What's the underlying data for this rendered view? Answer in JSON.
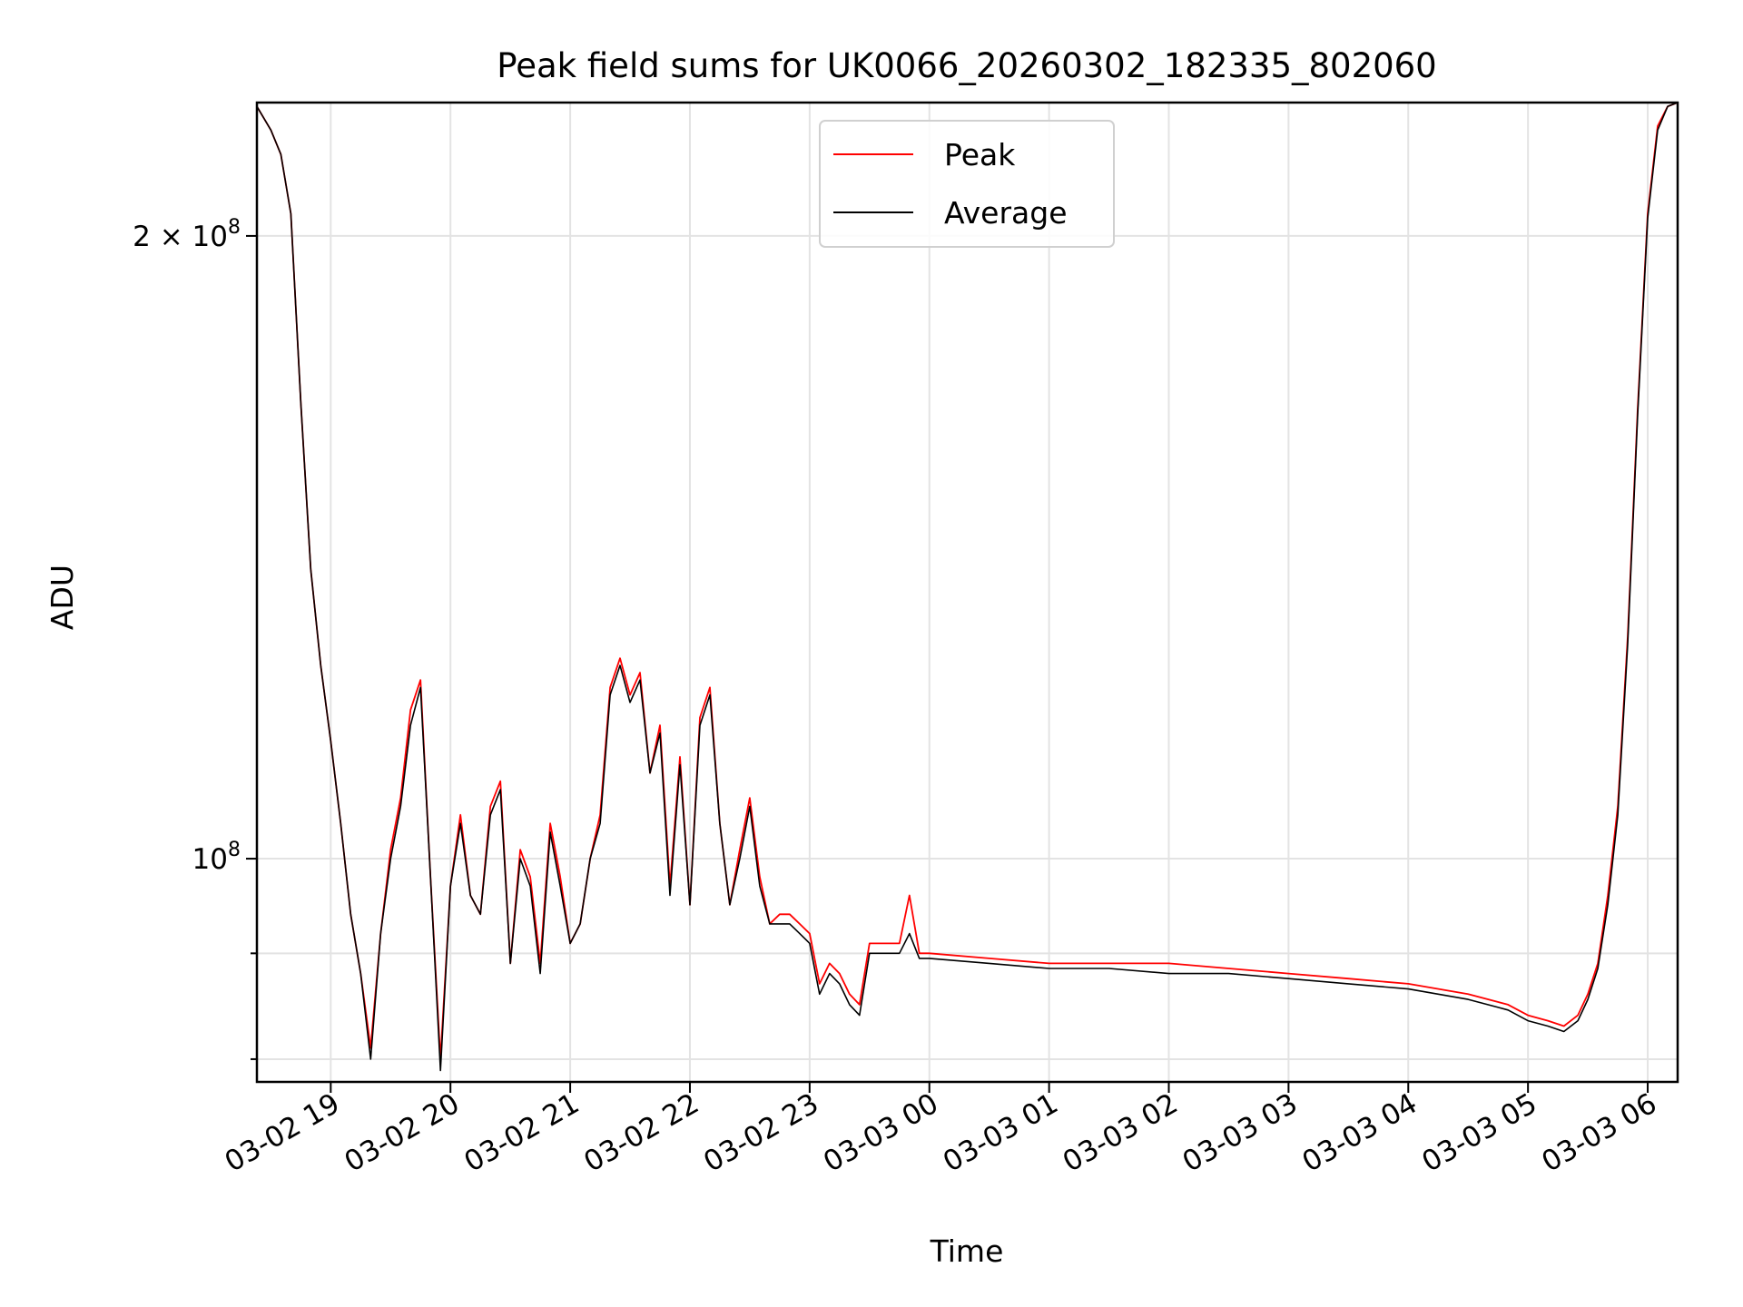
{
  "chart_data": {
    "type": "line",
    "title": "Peak field sums for UK0066_20260302_182335_802060",
    "xlabel": "Time",
    "ylabel": "ADU",
    "yscale": "log",
    "xlim": [
      "2026-03-02 18:23",
      "2026-03-03 06:15"
    ],
    "ylim": [
      78000000,
      232000000
    ],
    "grid": true,
    "legend_position": "top-center",
    "x_ticks": [
      "03-02 19",
      "03-02 20",
      "03-02 21",
      "03-02 22",
      "03-02 23",
      "03-03 00",
      "03-03 01",
      "03-03 02",
      "03-03 03",
      "03-03 04",
      "03-03 05",
      "03-03 06"
    ],
    "y_ticks": [
      {
        "value": 100000000,
        "base": "10",
        "exponent": "8",
        "coef": ""
      },
      {
        "value": 200000000,
        "base": "10",
        "exponent": "8",
        "coef": "2 × "
      }
    ],
    "x": [
      "2026-03-02 18:23",
      "2026-03-02 18:30",
      "2026-03-02 18:35",
      "2026-03-02 18:40",
      "2026-03-02 18:45",
      "2026-03-02 18:50",
      "2026-03-02 18:55",
      "2026-03-02 19:00",
      "2026-03-02 19:05",
      "2026-03-02 19:10",
      "2026-03-02 19:15",
      "2026-03-02 19:20",
      "2026-03-02 19:25",
      "2026-03-02 19:30",
      "2026-03-02 19:35",
      "2026-03-02 19:40",
      "2026-03-02 19:45",
      "2026-03-02 19:50",
      "2026-03-02 19:55",
      "2026-03-02 20:00",
      "2026-03-02 20:05",
      "2026-03-02 20:10",
      "2026-03-02 20:15",
      "2026-03-02 20:20",
      "2026-03-02 20:25",
      "2026-03-02 20:30",
      "2026-03-02 20:35",
      "2026-03-02 20:40",
      "2026-03-02 20:45",
      "2026-03-02 20:50",
      "2026-03-02 20:55",
      "2026-03-02 21:00",
      "2026-03-02 21:05",
      "2026-03-02 21:10",
      "2026-03-02 21:15",
      "2026-03-02 21:20",
      "2026-03-02 21:25",
      "2026-03-02 21:30",
      "2026-03-02 21:35",
      "2026-03-02 21:40",
      "2026-03-02 21:45",
      "2026-03-02 21:50",
      "2026-03-02 21:55",
      "2026-03-02 22:00",
      "2026-03-02 22:05",
      "2026-03-02 22:10",
      "2026-03-02 22:15",
      "2026-03-02 22:20",
      "2026-03-02 22:25",
      "2026-03-02 22:30",
      "2026-03-02 22:35",
      "2026-03-02 22:40",
      "2026-03-02 22:45",
      "2026-03-02 22:50",
      "2026-03-02 22:55",
      "2026-03-02 23:00",
      "2026-03-02 23:05",
      "2026-03-02 23:10",
      "2026-03-02 23:15",
      "2026-03-02 23:20",
      "2026-03-02 23:25",
      "2026-03-02 23:30",
      "2026-03-02 23:35",
      "2026-03-02 23:40",
      "2026-03-02 23:45",
      "2026-03-02 23:50",
      "2026-03-02 23:55",
      "2026-03-03 00:00",
      "2026-03-03 00:30",
      "2026-03-03 01:00",
      "2026-03-03 01:30",
      "2026-03-03 02:00",
      "2026-03-03 02:30",
      "2026-03-03 03:00",
      "2026-03-03 03:30",
      "2026-03-03 04:00",
      "2026-03-03 04:30",
      "2026-03-03 04:50",
      "2026-03-03 05:00",
      "2026-03-03 05:10",
      "2026-03-03 05:18",
      "2026-03-03 05:25",
      "2026-03-03 05:30",
      "2026-03-03 05:35",
      "2026-03-03 05:40",
      "2026-03-03 05:45",
      "2026-03-03 05:50",
      "2026-03-03 05:55",
      "2026-03-03 06:00",
      "2026-03-03 06:05",
      "2026-03-03 06:10",
      "2026-03-03 06:15"
    ],
    "series": [
      {
        "name": "Peak",
        "color": "#ff0000",
        "values": [
          231000000,
          225000000,
          219000000,
          205000000,
          166000000,
          138000000,
          124000000,
          114000000,
          104000000,
          94000000,
          88000000,
          81000000,
          92000000,
          101000000,
          107000000,
          118000000,
          122000000,
          98000000,
          80000000,
          97000000,
          105000000,
          96000000,
          94000000,
          106000000,
          109000000,
          89000000,
          101000000,
          98000000,
          89000000,
          104000000,
          98000000,
          91000000,
          93000000,
          100000000,
          105000000,
          121000000,
          125000000,
          120000000,
          123000000,
          110000000,
          116000000,
          97000000,
          112000000,
          95000000,
          117000000,
          121000000,
          104000000,
          95000000,
          101000000,
          107000000,
          98000000,
          93000000,
          94000000,
          94000000,
          93000000,
          92000000,
          87000000,
          89000000,
          88000000,
          86000000,
          85000000,
          91000000,
          91000000,
          91000000,
          91000000,
          96000000,
          90000000,
          90000000,
          89500000,
          89000000,
          89000000,
          89000000,
          88500000,
          88000000,
          87500000,
          87000000,
          86000000,
          85000000,
          84000000,
          83500000,
          83000000,
          84000000,
          86000000,
          89000000,
          96000000,
          106000000,
          128000000,
          165000000,
          205000000,
          226000000,
          231000000,
          232000000
        ]
      },
      {
        "name": "Average",
        "color": "#000000",
        "values": [
          231000000,
          225000000,
          219000000,
          205000000,
          166000000,
          138000000,
          124000000,
          114000000,
          104000000,
          94000000,
          88000000,
          80000000,
          92000000,
          100000000,
          106000000,
          116000000,
          121000000,
          98000000,
          79000000,
          97000000,
          104000000,
          96000000,
          94000000,
          105000000,
          108000000,
          89000000,
          100000000,
          97000000,
          88000000,
          103000000,
          97000000,
          91000000,
          93000000,
          100000000,
          104000000,
          120000000,
          124000000,
          119000000,
          122000000,
          110000000,
          115000000,
          96000000,
          111000000,
          95000000,
          116000000,
          120000000,
          104000000,
          95000000,
          100000000,
          106000000,
          97000000,
          93000000,
          93000000,
          93000000,
          92000000,
          91000000,
          86000000,
          88000000,
          87000000,
          85000000,
          84000000,
          90000000,
          90000000,
          90000000,
          90000000,
          92000000,
          89500000,
          89500000,
          89000000,
          88500000,
          88500000,
          88000000,
          88000000,
          87500000,
          87000000,
          86500000,
          85500000,
          84500000,
          83500000,
          83000000,
          82500000,
          83500000,
          85500000,
          88500000,
          95000000,
          105000000,
          127000000,
          164000000,
          204000000,
          225000000,
          231000000,
          232000000
        ]
      }
    ]
  }
}
